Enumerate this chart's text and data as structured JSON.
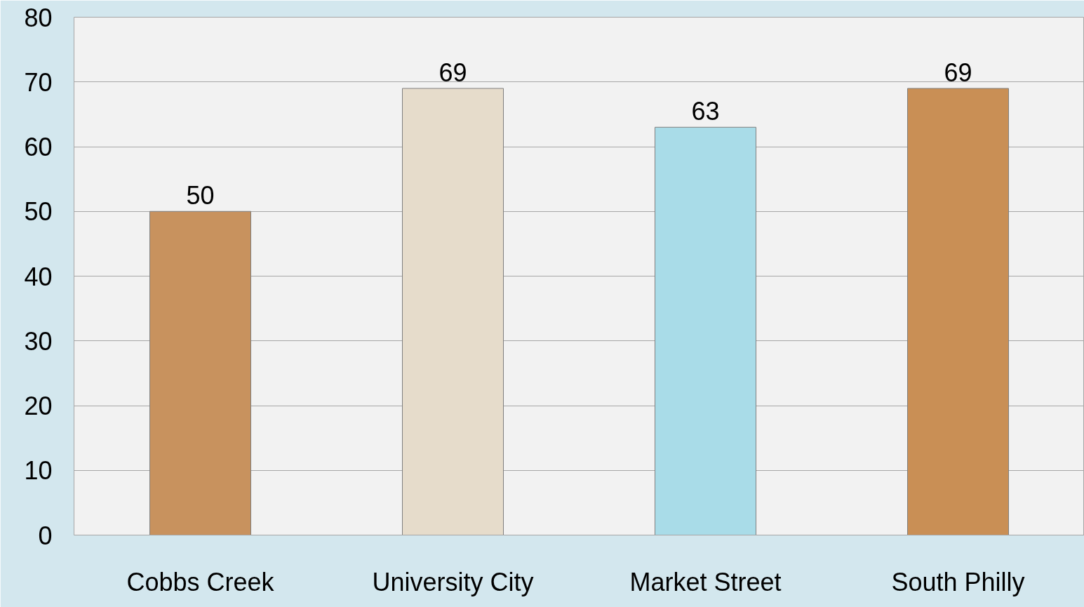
{
  "chart_data": {
    "type": "bar",
    "categories": [
      "Cobbs Creek",
      "University City",
      "Market Street",
      "South Philly"
    ],
    "values": [
      50,
      69,
      63,
      69
    ],
    "colors": [
      "#c8925e",
      "#e6dccb",
      "#a9dce8",
      "#c98f55"
    ],
    "ylim": [
      0,
      80
    ],
    "yticks": [
      0,
      10,
      20,
      30,
      40,
      50,
      60,
      70,
      80
    ],
    "grid": "y",
    "data_labels": true
  }
}
